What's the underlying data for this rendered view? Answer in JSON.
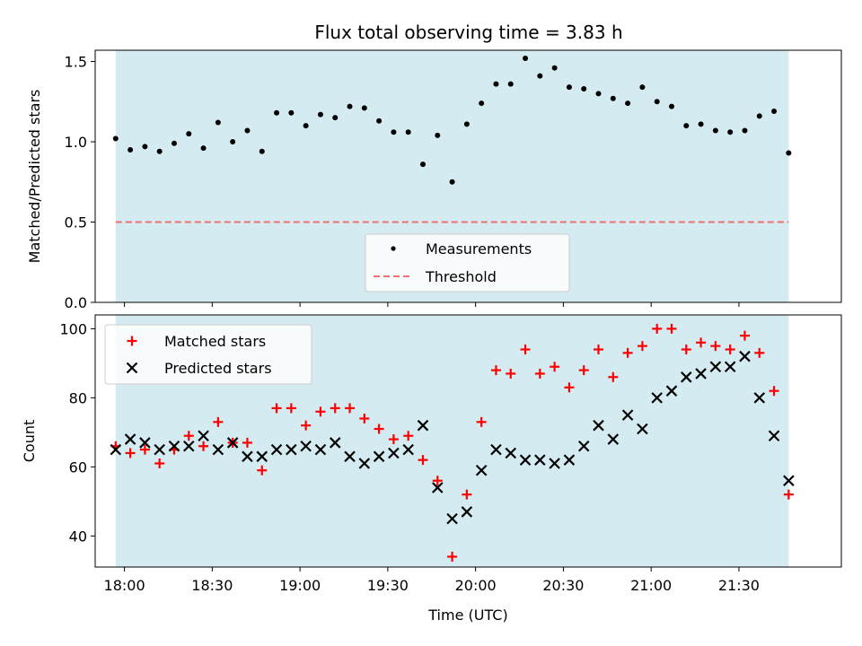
{
  "chart_data": {
    "type": "scatter",
    "title": "Flux total observing time = 3.83 h",
    "xlabel": "Time (UTC)",
    "x_ticks": [
      "18:00",
      "18:30",
      "19:00",
      "19:30",
      "20:00",
      "20:30",
      "21:00",
      "21:30"
    ],
    "x_tick_minutes": [
      0,
      30,
      60,
      90,
      120,
      150,
      180,
      210
    ],
    "observing_window": [
      "17:57",
      "21:47"
    ],
    "times": [
      "17:57",
      "18:02",
      "18:07",
      "18:12",
      "18:17",
      "18:22",
      "18:27",
      "18:32",
      "18:37",
      "18:42",
      "18:47",
      "18:52",
      "18:57",
      "19:02",
      "19:07",
      "19:12",
      "19:17",
      "19:22",
      "19:27",
      "19:32",
      "19:37",
      "19:42",
      "19:47",
      "19:52",
      "19:57",
      "20:02",
      "20:07",
      "20:12",
      "20:17",
      "20:22",
      "20:27",
      "20:32",
      "20:37",
      "20:42",
      "20:47",
      "20:52",
      "20:57",
      "21:02",
      "21:07",
      "21:12",
      "21:17",
      "21:22",
      "21:27",
      "21:32",
      "21:37",
      "21:42",
      "21:47"
    ],
    "top_panel": {
      "ylabel": "Matched/Predicted stars",
      "ylim": [
        0,
        1.57
      ],
      "y_ticks": [
        0.0,
        0.5,
        1.0,
        1.5
      ],
      "threshold": 0.5,
      "legend": [
        "Measurements",
        "Threshold"
      ],
      "legend_placement": "lower-center",
      "measurements": [
        1.02,
        0.95,
        0.97,
        0.94,
        0.99,
        1.05,
        0.96,
        1.12,
        1.0,
        1.07,
        0.94,
        1.18,
        1.18,
        1.1,
        1.17,
        1.15,
        1.22,
        1.21,
        1.13,
        1.06,
        1.06,
        0.86,
        1.04,
        0.75,
        1.11,
        1.24,
        1.36,
        1.36,
        1.52,
        1.41,
        1.46,
        1.34,
        1.33,
        1.3,
        1.27,
        1.24,
        1.34,
        1.25,
        1.22,
        1.1,
        1.11,
        1.07,
        1.06,
        1.07,
        1.16,
        1.19,
        0.93
      ]
    },
    "bottom_panel": {
      "ylabel": "Count",
      "ylim": [
        31,
        104
      ],
      "y_ticks": [
        40,
        60,
        80,
        100
      ],
      "legend_placement": "upper-left",
      "series": [
        {
          "name": "Matched stars",
          "marker": "+",
          "color": "#ff0000",
          "values": [
            66,
            64,
            65,
            61,
            65,
            69,
            66,
            73,
            67,
            67,
            59,
            77,
            77,
            72,
            76,
            77,
            77,
            74,
            71,
            68,
            69,
            62,
            56,
            34,
            52,
            73,
            88,
            87,
            94,
            87,
            89,
            83,
            88,
            94,
            86,
            93,
            95,
            100,
            100,
            94,
            96,
            95,
            94,
            98,
            93,
            82,
            52
          ]
        },
        {
          "name": "Predicted stars",
          "marker": "x",
          "color": "#000000",
          "values": [
            65,
            68,
            67,
            65,
            66,
            66,
            69,
            65,
            67,
            63,
            63,
            65,
            65,
            66,
            65,
            67,
            63,
            61,
            63,
            64,
            65,
            72,
            54,
            45,
            47,
            59,
            65,
            64,
            62,
            62,
            61,
            62,
            66,
            72,
            68,
            75,
            71,
            80,
            82,
            86,
            87,
            89,
            89,
            92,
            80,
            69,
            56
          ]
        }
      ]
    },
    "colors": {
      "window": "#d4ebf1",
      "threshold": "#f07070",
      "measurement": "#000000"
    }
  }
}
